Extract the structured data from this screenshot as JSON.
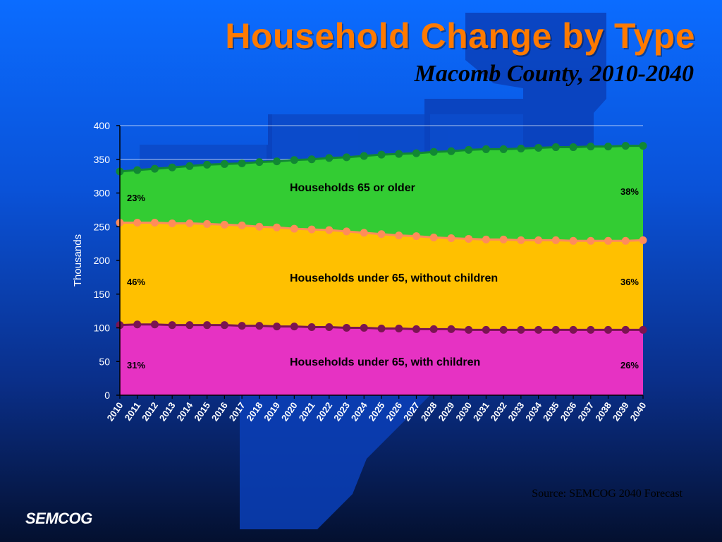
{
  "title": "Household Change by Type",
  "subtitle": "Macomb County, 2010-2040",
  "source": "Source: SEMCOG 2040 Forecast",
  "logo": "SEMCOG",
  "colors": {
    "with_children_fill": "#e632c3",
    "with_children_marker": "#7a1452",
    "without_children_fill": "#ffc000",
    "without_children_marker": "#ff8c5a",
    "older_fill": "#33cc33",
    "older_marker": "#118833",
    "title": "#ff7a00"
  },
  "chart_data": {
    "type": "area",
    "stacked": true,
    "ylabel": "Thousands",
    "xlabel": "",
    "ylim": [
      0,
      400
    ],
    "yticks": [
      0,
      50,
      100,
      150,
      200,
      250,
      300,
      350,
      400
    ],
    "grid": "horizontal",
    "x": [
      "2010",
      "2011",
      "2012",
      "2013",
      "2014",
      "2015",
      "2016",
      "2017",
      "2018",
      "2019",
      "2020",
      "2021",
      "2022",
      "2023",
      "2024",
      "2025",
      "2026",
      "2027",
      "2028",
      "2029",
      "2030",
      "2031",
      "2032",
      "2033",
      "2034",
      "2035",
      "2036",
      "2037",
      "2038",
      "2039",
      "2040"
    ],
    "series": [
      {
        "name": "Households under 65, with children",
        "start_share": "31%",
        "end_share": "26%",
        "cumulative": [
          104,
          105,
          105,
          104,
          104,
          104,
          104,
          103,
          103,
          102,
          102,
          101,
          101,
          100,
          100,
          99,
          99,
          98,
          98,
          98,
          97,
          97,
          97,
          97,
          97,
          97,
          97,
          97,
          97,
          97,
          97
        ]
      },
      {
        "name": "Households under 65, without children",
        "start_share": "46%",
        "end_share": "36%",
        "cumulative": [
          256,
          256,
          256,
          255,
          255,
          254,
          253,
          252,
          250,
          249,
          247,
          246,
          245,
          243,
          241,
          239,
          237,
          236,
          234,
          233,
          232,
          231,
          231,
          230,
          230,
          230,
          229,
          229,
          229,
          229,
          230
        ]
      },
      {
        "name": "Households 65 or older",
        "start_share": "23%",
        "end_share": "38%",
        "cumulative": [
          332,
          334,
          336,
          338,
          340,
          342,
          343,
          344,
          346,
          347,
          349,
          350,
          352,
          353,
          355,
          357,
          358,
          359,
          361,
          362,
          364,
          365,
          365,
          366,
          367,
          368,
          368,
          369,
          369,
          370,
          370
        ]
      }
    ]
  }
}
